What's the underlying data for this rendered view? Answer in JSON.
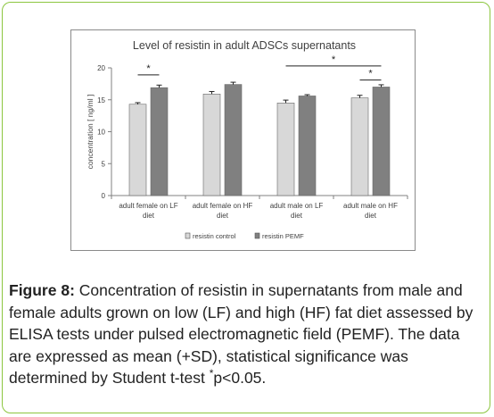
{
  "chart_data": {
    "type": "bar",
    "title": "Level of resistin in adult ADSCs supernatants",
    "ylabel": "concentration [ ng/ml ]",
    "xlabel": "",
    "ylim": [
      0,
      20
    ],
    "yticks": [
      0,
      5,
      10,
      15,
      20
    ],
    "categories": [
      [
        "adult female on LF",
        "diet"
      ],
      [
        "adult female on HF",
        "diet"
      ],
      [
        "adult male on LF",
        "diet"
      ],
      [
        "adult male on HF",
        "diet"
      ]
    ],
    "series": [
      {
        "name": "resistin control",
        "color": "#d8d8d8",
        "values": [
          14.3,
          15.9,
          14.5,
          15.3
        ],
        "errors": [
          0.25,
          0.4,
          0.45,
          0.4
        ]
      },
      {
        "name": "resistin PEMF",
        "color": "#808080",
        "values": [
          16.9,
          17.4,
          15.6,
          17.0
        ],
        "errors": [
          0.4,
          0.35,
          0.2,
          0.35
        ]
      }
    ],
    "grid": false,
    "legend": "bottom",
    "significance": [
      {
        "label": "*",
        "from": [
          0,
          0
        ],
        "to": [
          0,
          1
        ],
        "y": 18.9
      },
      {
        "label": "*",
        "from": [
          3,
          0
        ],
        "to": [
          3,
          1
        ],
        "y": 18.1
      },
      {
        "label": "*",
        "from": [
          2,
          0
        ],
        "to": [
          3,
          1
        ],
        "y": 20.3
      }
    ]
  },
  "caption": {
    "label": "Figure 8:",
    "text_main": " Concentration of resistin in supernatants from male and female adults grown on low (LF) and high (HF) fat diet assessed by ELISA tests under pulsed electromagnetic field (PEMF). The data are expressed as mean (+SD), statistical significance was determined by Student t-test ",
    "star": "*",
    "text_end": "p<0.05."
  },
  "colors": {
    "frame_border": "#8cc63f"
  }
}
